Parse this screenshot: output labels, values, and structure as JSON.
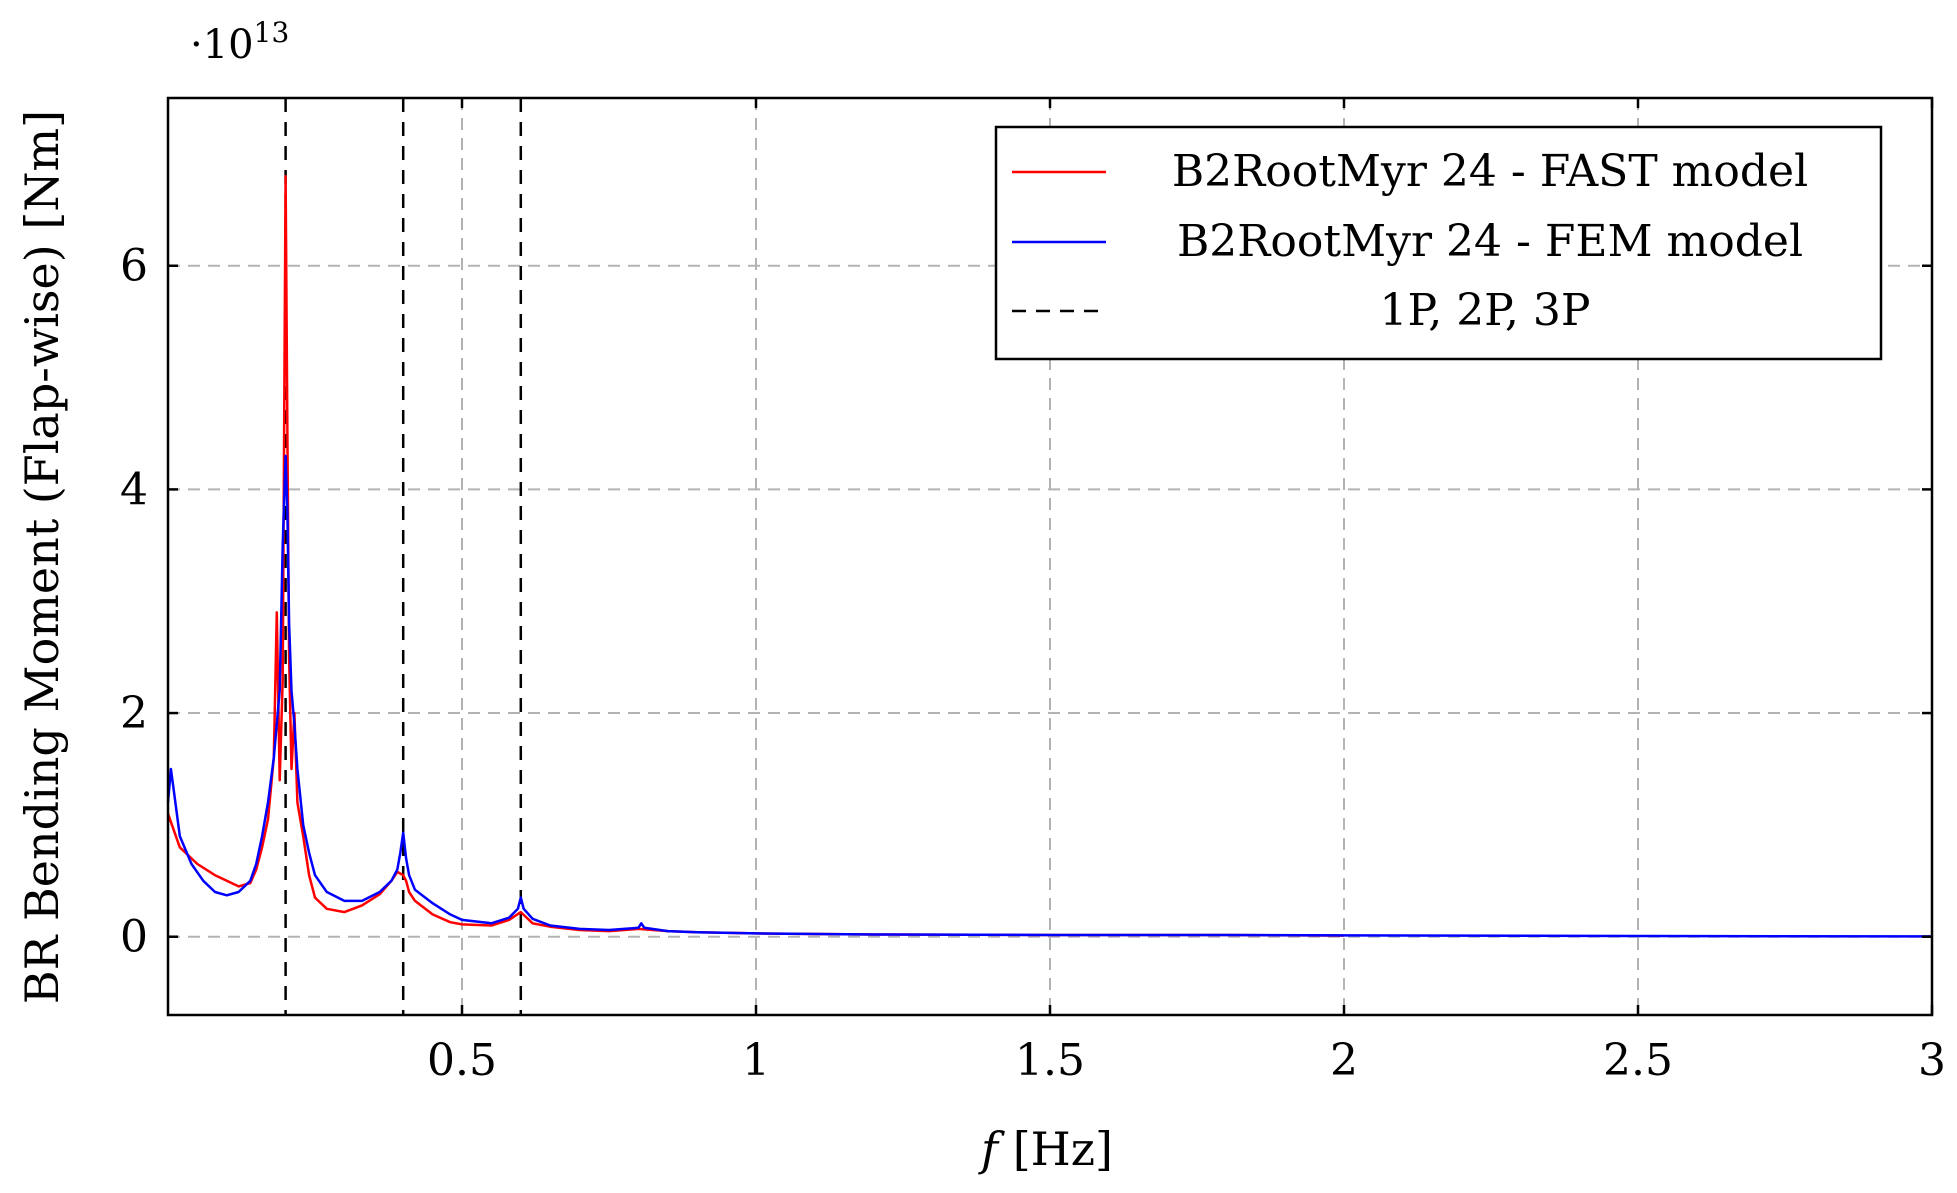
{
  "chart_data": {
    "type": "line",
    "title": "",
    "xlabel": "f [Hz]",
    "xlabel_italic_part": "f",
    "xlabel_unit": " [Hz]",
    "ylabel": "BR Bending Moment (Flap-wise) [Nm]",
    "y_scale_prefix": "·10",
    "y_scale_exponent": "13",
    "y_multiplier": 10000000000000.0,
    "xlim": [
      0,
      3
    ],
    "ylim": [
      -0.7,
      7.5
    ],
    "x_ticks": [
      0.5,
      1,
      1.5,
      2,
      2.5,
      3
    ],
    "x_tick_labels": [
      "0.5",
      "1",
      "1.5",
      "2",
      "2.5",
      "3"
    ],
    "y_ticks": [
      0,
      2,
      4,
      6
    ],
    "y_tick_labels": [
      "0",
      "2",
      "4",
      "6"
    ],
    "grid": true,
    "legend_position": "top-right",
    "vlines": {
      "name": "1P, 2P, 3P",
      "x": [
        0.2,
        0.4,
        0.6
      ],
      "style": "dashed",
      "color": "#000000"
    },
    "series": [
      {
        "name": "B2RootMyr 24 - FAST model",
        "color": "#ff0000",
        "x": [
          0.0,
          0.02,
          0.05,
          0.08,
          0.1,
          0.12,
          0.14,
          0.15,
          0.16,
          0.17,
          0.18,
          0.185,
          0.19,
          0.195,
          0.2,
          0.203,
          0.206,
          0.21,
          0.215,
          0.22,
          0.23,
          0.24,
          0.25,
          0.27,
          0.3,
          0.33,
          0.36,
          0.38,
          0.39,
          0.4,
          0.405,
          0.41,
          0.42,
          0.45,
          0.48,
          0.5,
          0.55,
          0.58,
          0.6,
          0.62,
          0.65,
          0.7,
          0.75,
          0.8,
          0.85,
          0.9,
          1.0,
          1.2,
          1.5,
          1.8,
          2.0
        ],
        "values": [
          1.1,
          0.8,
          0.65,
          0.55,
          0.5,
          0.45,
          0.48,
          0.6,
          0.8,
          1.05,
          1.6,
          2.9,
          1.4,
          2.3,
          6.8,
          4.5,
          2.5,
          1.5,
          2.0,
          1.2,
          0.9,
          0.55,
          0.35,
          0.25,
          0.22,
          0.28,
          0.38,
          0.5,
          0.58,
          0.55,
          0.5,
          0.4,
          0.32,
          0.2,
          0.13,
          0.11,
          0.1,
          0.15,
          0.22,
          0.12,
          0.09,
          0.06,
          0.05,
          0.07,
          0.05,
          0.04,
          0.03,
          0.02,
          0.015,
          0.015,
          0.01
        ]
      },
      {
        "name": "B2RootMyr 24 - FEM model",
        "color": "#0000ff",
        "x": [
          0.0,
          0.005,
          0.01,
          0.02,
          0.04,
          0.06,
          0.08,
          0.1,
          0.12,
          0.14,
          0.15,
          0.16,
          0.17,
          0.18,
          0.19,
          0.195,
          0.2,
          0.203,
          0.206,
          0.21,
          0.215,
          0.22,
          0.23,
          0.24,
          0.25,
          0.27,
          0.3,
          0.33,
          0.36,
          0.38,
          0.39,
          0.395,
          0.4,
          0.405,
          0.41,
          0.42,
          0.45,
          0.48,
          0.5,
          0.55,
          0.58,
          0.595,
          0.6,
          0.605,
          0.62,
          0.65,
          0.7,
          0.75,
          0.8,
          0.805,
          0.81,
          0.85,
          0.9,
          1.0,
          1.2,
          1.5,
          1.8,
          2.0,
          2.5,
          3.0
        ],
        "values": [
          1.2,
          1.5,
          1.3,
          0.9,
          0.65,
          0.5,
          0.4,
          0.37,
          0.4,
          0.5,
          0.65,
          0.9,
          1.2,
          1.6,
          2.2,
          3.5,
          4.3,
          3.8,
          2.8,
          2.2,
          1.9,
          1.5,
          1.0,
          0.75,
          0.55,
          0.4,
          0.32,
          0.32,
          0.4,
          0.5,
          0.6,
          0.75,
          0.93,
          0.7,
          0.55,
          0.42,
          0.3,
          0.2,
          0.15,
          0.12,
          0.17,
          0.25,
          0.35,
          0.25,
          0.16,
          0.1,
          0.07,
          0.06,
          0.08,
          0.12,
          0.08,
          0.05,
          0.04,
          0.03,
          0.02,
          0.015,
          0.015,
          0.012,
          0.006,
          0.003
        ]
      }
    ]
  }
}
